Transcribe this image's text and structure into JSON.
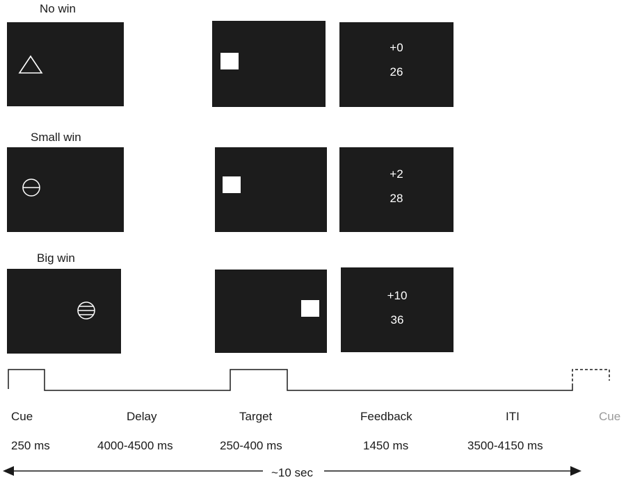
{
  "conditions": [
    {
      "label": "No win",
      "gain": "+0",
      "total": "26",
      "cue_icon": "triangle-icon"
    },
    {
      "label": "Small win",
      "gain": "+2",
      "total": "28",
      "cue_icon": "circle-one-line-icon"
    },
    {
      "label": "Big win",
      "gain": "+10",
      "total": "36",
      "cue_icon": "circle-three-lines-icon"
    }
  ],
  "phases": [
    {
      "name": "Cue",
      "duration": "250 ms"
    },
    {
      "name": "Delay",
      "duration": "4000-4500 ms"
    },
    {
      "name": "Target",
      "duration": "250-400 ms"
    },
    {
      "name": "Feedback",
      "duration": "1450 ms"
    },
    {
      "name": "ITI",
      "duration": "3500-4150 ms"
    },
    {
      "name": "Cue",
      "duration": ""
    }
  ],
  "total_duration": "~10 sec",
  "colors": {
    "screen": "#1c1c1c",
    "stimulus": "#ffffff",
    "next_cue_text": "#9a9a9a",
    "line": "#1a1a1a"
  }
}
